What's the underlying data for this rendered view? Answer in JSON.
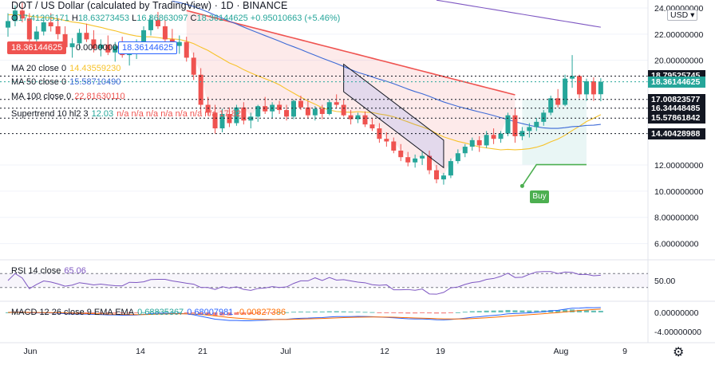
{
  "header": {
    "title": "DOT / US Dollar (calculated by TradingView) · 1D · BINANCE",
    "ohlc": {
      "o_label": "O",
      "o": "17.41205171",
      "h_label": "H",
      "h": "18.63273453",
      "l_label": "L",
      "l": "16.86863097",
      "c_label": "C",
      "c": "18.36144625",
      "chg": "+0.95010663 (+5.46%)"
    },
    "bid": "18.36144625",
    "spread": "0.00000000",
    "ask": "18.36144625"
  },
  "indicators": {
    "ma20": {
      "label": "MA 20 close 0",
      "value": "14.43559230",
      "color": "#f7c32c"
    },
    "ma50": {
      "label": "MA 50 close 0",
      "value": "15.58710490",
      "color": "#3d6ad6"
    },
    "ma100": {
      "label": "MA 100 close 0",
      "value": "22.81630110",
      "color": "#ef5350"
    },
    "supertrend": {
      "label": "Supertrend 10 hl2 3",
      "v1": "12.03",
      "rest": "n/a n/a n/a n/a n/a n/a n/a 17.82"
    },
    "rsi": {
      "label": "RSI 14 close",
      "value": "65.06"
    },
    "macd": {
      "label": "MACD 12 26 close 9 EMA EMA",
      "v1": "0.68835367",
      "v2": "0.68007981",
      "v3": "-0.00827386"
    }
  },
  "currency_button": "USD ▾",
  "buy_label": "Buy",
  "price_badges": [
    {
      "value": "18.79525745",
      "color": "#131722",
      "price": 18.795
    },
    {
      "value": "18.36144625",
      "color": "#26a69a",
      "price": 18.36
    },
    {
      "value": "17.00823577",
      "color": "#131722",
      "price": 17.01
    },
    {
      "value": "16.34448485",
      "color": "#131722",
      "price": 16.34
    },
    {
      "value": "15.57861842",
      "color": "#131722",
      "price": 15.58
    },
    {
      "value": "14.40428988",
      "color": "#131722",
      "price": 14.4
    }
  ],
  "chart_data": {
    "type": "candlestick",
    "title": "DOT / US Dollar (calculated by TradingView) · 1D · BINANCE",
    "x_ticks": [
      "Jun",
      "14",
      "21",
      "Jul",
      "12",
      "19",
      "Aug",
      "9"
    ],
    "y_ticks": [
      "24.00000000",
      "22.00000000",
      "20.00000000",
      "12.00000000",
      "10.00000000",
      "8.00000000",
      "6.00000000"
    ],
    "ylim": [
      5,
      24
    ],
    "candles": [
      [
        22.5,
        23.6,
        21.8,
        23.0
      ],
      [
        23.0,
        24.2,
        22.6,
        23.8
      ],
      [
        23.8,
        24.4,
        22.9,
        23.2
      ],
      [
        23.2,
        23.6,
        21.2,
        21.6
      ],
      [
        21.6,
        22.6,
        21.0,
        22.2
      ],
      [
        22.2,
        23.3,
        21.9,
        22.9
      ],
      [
        22.9,
        23.6,
        22.2,
        22.6
      ],
      [
        22.6,
        23.2,
        21.6,
        22.0
      ],
      [
        22.0,
        22.6,
        20.7,
        21.0
      ],
      [
        21.0,
        21.7,
        20.2,
        21.3
      ],
      [
        21.3,
        22.4,
        20.9,
        22.1
      ],
      [
        22.1,
        22.8,
        21.4,
        21.6
      ],
      [
        21.6,
        22.3,
        20.6,
        20.9
      ],
      [
        20.9,
        21.6,
        20.3,
        21.2
      ],
      [
        21.2,
        21.9,
        20.4,
        20.6
      ],
      [
        20.6,
        21.4,
        19.9,
        21.1
      ],
      [
        21.1,
        21.8,
        20.2,
        20.4
      ],
      [
        20.4,
        21.1,
        19.6,
        20.8
      ],
      [
        20.8,
        21.6,
        20.1,
        21.3
      ],
      [
        21.3,
        22.6,
        20.9,
        22.3
      ],
      [
        22.3,
        23.4,
        21.9,
        23.1
      ],
      [
        23.1,
        23.7,
        22.4,
        22.6
      ],
      [
        22.6,
        23.1,
        21.3,
        21.6
      ],
      [
        21.6,
        22.4,
        20.8,
        21.1
      ],
      [
        21.1,
        21.9,
        20.5,
        21.4
      ],
      [
        21.4,
        21.8,
        19.9,
        20.2
      ],
      [
        20.2,
        20.6,
        18.5,
        18.9
      ],
      [
        18.9,
        19.4,
        16.0,
        16.6
      ],
      [
        16.6,
        17.2,
        15.8,
        16.0
      ],
      [
        16.0,
        16.6,
        14.4,
        14.8
      ],
      [
        14.8,
        16.3,
        14.5,
        15.9
      ],
      [
        15.9,
        16.4,
        14.9,
        15.2
      ],
      [
        15.2,
        16.6,
        15.0,
        16.4
      ],
      [
        16.4,
        16.8,
        15.1,
        15.4
      ],
      [
        15.4,
        16.0,
        14.8,
        15.7
      ],
      [
        15.7,
        16.6,
        15.3,
        16.5
      ],
      [
        16.5,
        17.2,
        15.9,
        16.1
      ],
      [
        16.1,
        16.8,
        15.6,
        16.6
      ],
      [
        16.6,
        16.9,
        15.9,
        16.2
      ],
      [
        16.2,
        16.6,
        15.4,
        15.7
      ],
      [
        15.7,
        17.0,
        15.5,
        16.9
      ],
      [
        16.9,
        17.3,
        16.2,
        16.4
      ],
      [
        16.4,
        16.9,
        15.6,
        15.8
      ],
      [
        15.8,
        16.5,
        15.4,
        16.3
      ],
      [
        16.3,
        16.6,
        15.5,
        15.9
      ],
      [
        15.9,
        17.0,
        15.8,
        16.8
      ],
      [
        16.8,
        17.4,
        16.3,
        16.6
      ],
      [
        16.6,
        17.0,
        15.7,
        15.8
      ],
      [
        15.8,
        16.2,
        15.1,
        15.5
      ],
      [
        15.5,
        16.0,
        15.2,
        15.8
      ],
      [
        15.8,
        16.1,
        14.9,
        15.1
      ],
      [
        15.1,
        15.6,
        14.6,
        14.8
      ],
      [
        14.8,
        15.2,
        13.7,
        14.0
      ],
      [
        14.0,
        14.5,
        13.4,
        13.8
      ],
      [
        13.8,
        14.1,
        12.9,
        13.1
      ],
      [
        13.1,
        13.6,
        12.3,
        12.6
      ],
      [
        12.6,
        13.0,
        11.9,
        12.2
      ],
      [
        12.2,
        12.8,
        11.8,
        12.5
      ],
      [
        12.5,
        13.0,
        12.0,
        12.7
      ],
      [
        12.7,
        13.1,
        11.3,
        11.6
      ],
      [
        11.6,
        12.0,
        10.6,
        10.9
      ],
      [
        10.9,
        11.4,
        10.5,
        11.2
      ],
      [
        11.2,
        12.5,
        11.0,
        12.3
      ],
      [
        12.3,
        13.2,
        12.1,
        12.9
      ],
      [
        12.9,
        13.6,
        12.6,
        13.4
      ],
      [
        13.4,
        14.1,
        13.1,
        13.9
      ],
      [
        13.9,
        14.2,
        13.0,
        13.5
      ],
      [
        13.5,
        14.6,
        13.3,
        14.3
      ],
      [
        14.3,
        14.8,
        13.6,
        14.0
      ],
      [
        14.0,
        14.6,
        13.7,
        14.4
      ],
      [
        14.4,
        16.0,
        14.2,
        15.8
      ],
      [
        15.8,
        16.3,
        13.7,
        14.2
      ],
      [
        14.2,
        14.9,
        13.9,
        14.6
      ],
      [
        14.6,
        15.2,
        14.1,
        14.9
      ],
      [
        14.9,
        15.6,
        14.6,
        15.3
      ],
      [
        15.3,
        16.2,
        15.0,
        16.0
      ],
      [
        16.0,
        17.3,
        15.8,
        17.1
      ],
      [
        17.1,
        17.8,
        16.4,
        16.6
      ],
      [
        16.6,
        18.9,
        16.5,
        18.6
      ],
      [
        18.6,
        20.4,
        17.9,
        18.8
      ],
      [
        18.8,
        18.9,
        17.1,
        17.4
      ],
      [
        17.4,
        18.6,
        16.9,
        18.4
      ],
      [
        18.4,
        18.7,
        16.9,
        17.4
      ],
      [
        17.41,
        18.63,
        16.87,
        18.36
      ]
    ],
    "rsi": {
      "ylim": [
        0,
        100
      ],
      "ticks": [
        "50.00"
      ],
      "latest": 65.06
    },
    "macd": {
      "ticks": [
        "0.00000000",
        "-4.00000000"
      ],
      "histogram_latest": 0.688,
      "macd_latest": 0.68,
      "signal_latest": -0.008
    }
  }
}
